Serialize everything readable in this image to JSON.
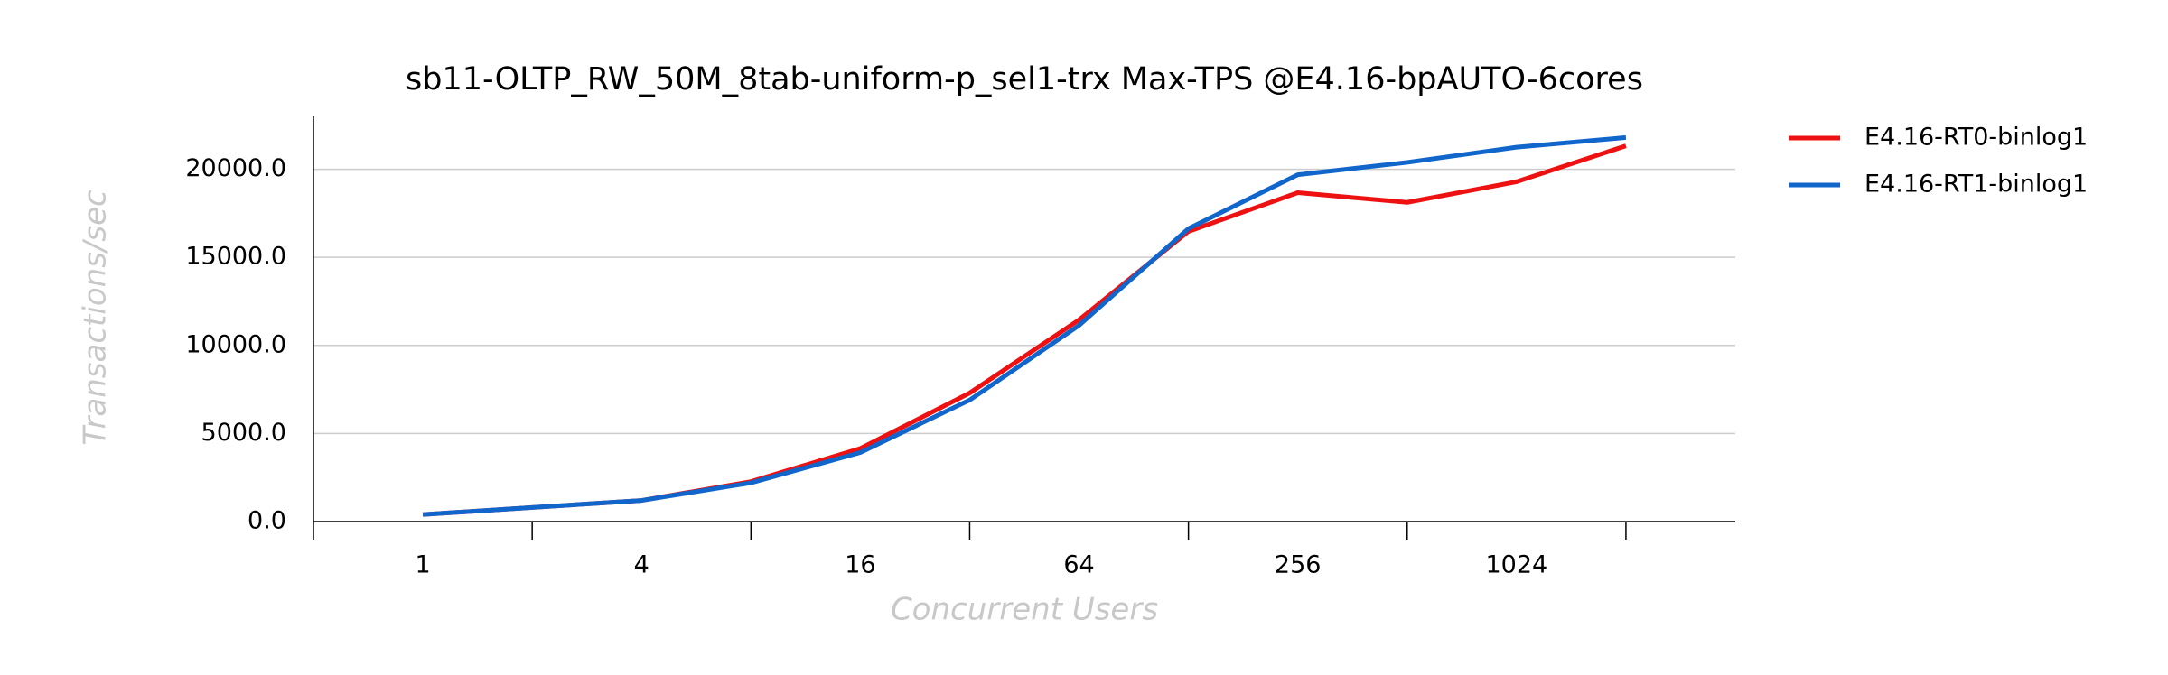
{
  "chart_data": {
    "type": "line",
    "title": "sb11-OLTP_RW_50M_8tab-uniform-p_sel1-trx Max-TPS @E4.16-bpAUTO-6cores",
    "x_label": "Concurrent Users",
    "y_label": "Transactions/sec",
    "x": [
      1,
      2,
      4,
      8,
      16,
      32,
      64,
      128,
      256,
      512,
      1024,
      2048
    ],
    "series": [
      {
        "name": "E4.16-RT0-binlog1",
        "color": "#ee1111",
        "values": [
          400,
          800,
          1200,
          2270,
          4150,
          7300,
          11450,
          16470,
          18670,
          18120,
          19290,
          21330
        ]
      },
      {
        "name": "E4.16-RT1-binlog1",
        "color": "#1166cc",
        "values": [
          400,
          800,
          1200,
          2200,
          3920,
          6900,
          11140,
          16630,
          19690,
          20390,
          21250,
          21800
        ]
      }
    ],
    "xscale": "log2",
    "xlim": [
      0.5,
      4096
    ],
    "xticks": [
      1,
      4,
      16,
      64,
      256,
      1024
    ],
    "xminorticks": [
      0.5,
      2,
      8,
      32,
      128,
      512,
      2048
    ],
    "ylim": [
      0,
      23000
    ],
    "yticks": [
      {
        "value": 0,
        "label": "0.0"
      },
      {
        "value": 5000,
        "label": "5000.0"
      },
      {
        "value": 10000,
        "label": "10000.0"
      },
      {
        "value": 15000,
        "label": "15000.0"
      },
      {
        "value": 20000,
        "label": "20000.0"
      }
    ],
    "grid": true,
    "legend": "right"
  }
}
